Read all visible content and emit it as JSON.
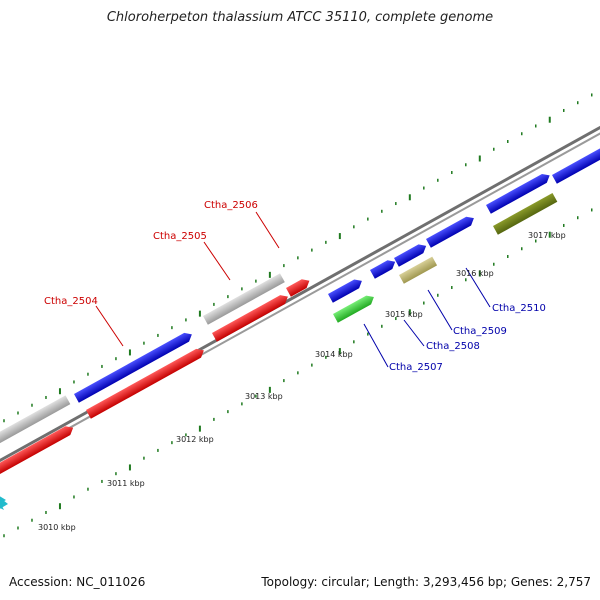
{
  "title": "Chloroherpeton thalassium ATCC 35110, complete genome",
  "footer": {
    "accession": "Accession: NC_011026",
    "summary": "Topology: circular; Length: 3,293,456 bp; Genes: 2,757"
  },
  "kbp_labels": [
    "3010 kbp",
    "3011 kbp",
    "3012 kbp",
    "3013 kbp",
    "3014 kbp",
    "3015 kbp",
    "3016 kbp",
    "3017 kbp"
  ],
  "gene_labels": [
    {
      "text": "Ctha_2504",
      "color": "#cc0000"
    },
    {
      "text": "Ctha_2505",
      "color": "#cc0000"
    },
    {
      "text": "Ctha_2506",
      "color": "#cc0000"
    },
    {
      "text": "Ctha_2507",
      "color": "#0000aa"
    },
    {
      "text": "Ctha_2508",
      "color": "#0000aa"
    },
    {
      "text": "Ctha_2509",
      "color": "#0000aa"
    },
    {
      "text": "Ctha_2510",
      "color": "#0000aa"
    }
  ],
  "colors": {
    "red": "#e81010",
    "blue": "#0a10d8",
    "gray": "#b8b8b8",
    "green": "#33cc33",
    "khaki": "#b8b070",
    "olive": "#6b7a1a",
    "cyan": "#22bbcc",
    "tick": "#1f7a1f",
    "backbone": "#7a7a7a"
  }
}
